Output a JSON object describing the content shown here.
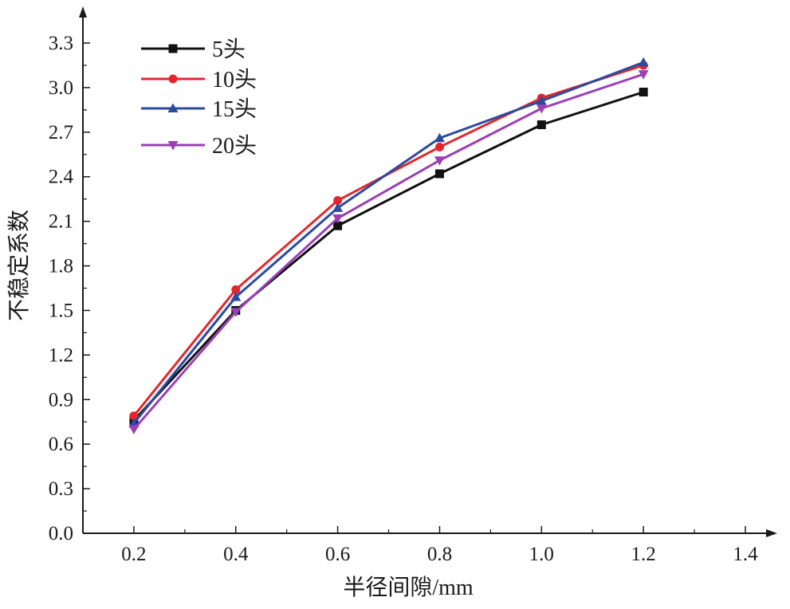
{
  "chart_data": {
    "type": "line",
    "title": "",
    "xlabel": "半径间隙/mm",
    "ylabel": "不稳定系数",
    "xlim": [
      0.1,
      1.4
    ],
    "ylim": [
      0.0,
      3.3
    ],
    "x_ticks": [
      "0.2",
      "0.4",
      "0.6",
      "0.8",
      "1.0",
      "1.2",
      "1.4"
    ],
    "y_ticks": [
      "0.0",
      "0.3",
      "0.6",
      "0.9",
      "1.2",
      "1.5",
      "1.8",
      "2.1",
      "2.4",
      "2.7",
      "3.0",
      "3.3"
    ],
    "grid": false,
    "legend_position": "top-left",
    "x": [
      0.2,
      0.4,
      0.6,
      0.8,
      1.0,
      1.2
    ],
    "series": [
      {
        "name": "5头",
        "color": "#111111",
        "marker": "square",
        "values": [
          0.76,
          1.5,
          2.07,
          2.42,
          2.75,
          2.97
        ]
      },
      {
        "name": "10头",
        "color": "#e3262d",
        "marker": "circle",
        "values": [
          0.79,
          1.64,
          2.24,
          2.6,
          2.93,
          3.15
        ]
      },
      {
        "name": "15头",
        "color": "#2b4aa0",
        "marker": "triangle-up",
        "values": [
          0.74,
          1.59,
          2.19,
          2.66,
          2.91,
          3.17
        ]
      },
      {
        "name": "20头",
        "color": "#9b3fb5",
        "marker": "triangle-down",
        "values": [
          0.7,
          1.49,
          2.12,
          2.51,
          2.86,
          3.09
        ]
      }
    ]
  }
}
